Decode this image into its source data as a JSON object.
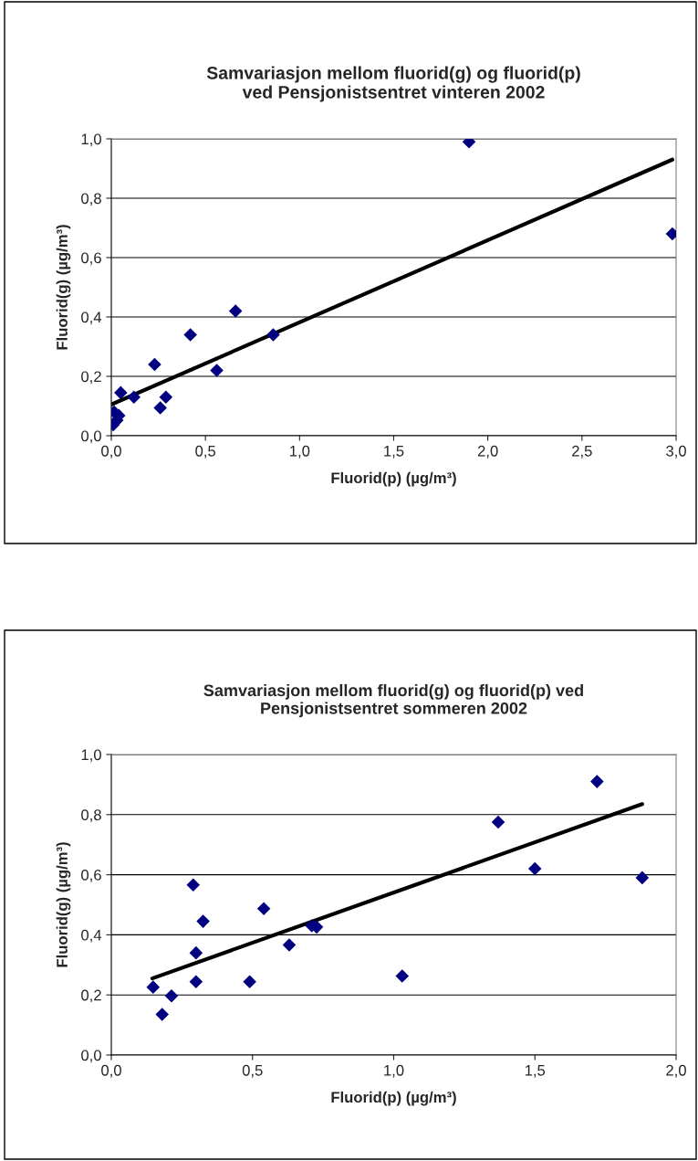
{
  "chart_data": [
    {
      "type": "scatter",
      "title": "Samvariasjon mellom fluorid(g) og fluorid(p)\nved Pensjonistsentret vinteren 2002",
      "xlabel": "Fluorid(p) (µg/m³)",
      "ylabel": "Fluorid(g) (µg/m³)",
      "series": [
        {
          "color": "#000080",
          "marker": "diamond",
          "x": [
            1.9,
            2.98,
            0.66,
            0.42,
            0.86,
            0.23,
            0.56,
            0.05,
            0.12,
            0.29,
            0.26,
            0.015,
            0.04,
            0.03,
            0.01
          ],
          "values": [
            0.99,
            0.68,
            0.42,
            0.34,
            0.34,
            0.24,
            0.22,
            0.145,
            0.13,
            0.13,
            0.094,
            0.08,
            0.068,
            0.052,
            0.037
          ]
        },
        {
          "type": "line",
          "color": "#000000",
          "marker": "none",
          "x": [
            0.0,
            2.98
          ],
          "values": [
            0.105,
            0.93
          ]
        }
      ],
      "xlim": [
        0,
        3
      ],
      "ylim": [
        0,
        1
      ],
      "xticks": [
        {
          "value": 0,
          "label": "0,0"
        },
        {
          "value": 0.5,
          "label": "0,5"
        },
        {
          "value": 1,
          "label": "1,0"
        },
        {
          "value": 1.5,
          "label": "1,5"
        },
        {
          "value": 2,
          "label": "2,0"
        },
        {
          "value": 2.5,
          "label": "2,5"
        },
        {
          "value": 3,
          "label": "3,0"
        }
      ],
      "yticks": [
        {
          "value": 0,
          "label": "0,0"
        },
        {
          "value": 0.2,
          "label": "0,2"
        },
        {
          "value": 0.4,
          "label": "0,4"
        },
        {
          "value": 0.6,
          "label": "0,6"
        },
        {
          "value": 0.8,
          "label": "0,8"
        },
        {
          "value": 1,
          "label": "1,0"
        }
      ],
      "grid": "y",
      "legend": false
    },
    {
      "type": "scatter",
      "title": "Samvariasjon mellom fluorid(g) og fluorid(p) ved\nPensjonistsentret sommeren 2002",
      "xlabel": "Fluorid(p) (µg/m³)",
      "ylabel": "Fluorid(g) (µg/m³)",
      "series": [
        {
          "color": "#000080",
          "marker": "diamond",
          "x": [
            0.29,
            0.54,
            0.325,
            0.727,
            0.71,
            0.63,
            0.3,
            0.3,
            0.49,
            1.03,
            0.148,
            0.213,
            0.18,
            1.37,
            1.5,
            1.72,
            1.88
          ],
          "values": [
            0.566,
            0.487,
            0.445,
            0.426,
            0.43,
            0.366,
            0.34,
            0.244,
            0.244,
            0.263,
            0.226,
            0.197,
            0.135,
            0.775,
            0.62,
            0.91,
            0.59
          ]
        },
        {
          "type": "line",
          "color": "#000000",
          "marker": "none",
          "x": [
            0.145,
            1.88
          ],
          "values": [
            0.255,
            0.835
          ]
        }
      ],
      "xlim": [
        0,
        2
      ],
      "ylim": [
        0,
        1
      ],
      "xticks": [
        {
          "value": 0,
          "label": "0,0"
        },
        {
          "value": 0.5,
          "label": "0,5"
        },
        {
          "value": 1,
          "label": "1,0"
        },
        {
          "value": 1.5,
          "label": "1,5"
        },
        {
          "value": 2,
          "label": "2,0"
        }
      ],
      "yticks": [
        {
          "value": 0,
          "label": "0,0"
        },
        {
          "value": 0.2,
          "label": "0,2"
        },
        {
          "value": 0.4,
          "label": "0,4"
        },
        {
          "value": 0.6,
          "label": "0,6"
        },
        {
          "value": 0.8,
          "label": "0,8"
        },
        {
          "value": 1,
          "label": "1,0"
        }
      ],
      "grid": "y",
      "legend": false
    }
  ]
}
